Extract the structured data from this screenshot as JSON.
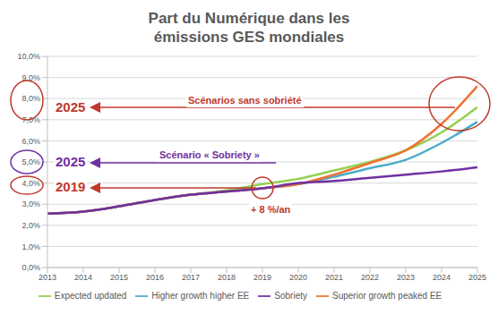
{
  "chart_data": {
    "type": "line",
    "title": "Part du Numérique dans les émissions GES mondiales",
    "x": [
      2013,
      2014,
      2015,
      2016,
      2017,
      2018,
      2019,
      2020,
      2021,
      2022,
      2023,
      2024,
      2025
    ],
    "xlim": [
      2013,
      2025
    ],
    "xticks": [
      2013,
      2014,
      2015,
      2016,
      2017,
      2018,
      2019,
      2020,
      2021,
      2022,
      2023,
      2024,
      2025
    ],
    "ylim": [
      0,
      10
    ],
    "yticks": [
      {
        "value": 0,
        "label": "0,0%"
      },
      {
        "value": 1,
        "label": "1,0%"
      },
      {
        "value": 2,
        "label": "2,0%"
      },
      {
        "value": 3,
        "label": "3,0%"
      },
      {
        "value": 4,
        "label": "4,0%"
      },
      {
        "value": 5,
        "label": "5,0%"
      },
      {
        "value": 6,
        "label": "6,0%"
      },
      {
        "value": 7,
        "label": "7,0%"
      },
      {
        "value": 8,
        "label": "8,0%"
      },
      {
        "value": 9,
        "label": "9,0%"
      },
      {
        "value": 10,
        "label": "10,0%"
      }
    ],
    "grid": true,
    "legend": "bottom",
    "series": [
      {
        "name": "Expected updated",
        "color": "#92d050",
        "values": [
          2.55,
          2.65,
          2.9,
          3.2,
          3.45,
          3.65,
          3.95,
          4.2,
          4.6,
          5.0,
          5.55,
          6.4,
          7.6
        ]
      },
      {
        "name": "Higher growth higher EE",
        "color": "#4bacc6",
        "values": [
          2.55,
          2.65,
          2.9,
          3.2,
          3.45,
          3.6,
          3.75,
          3.95,
          4.3,
          4.7,
          5.1,
          5.9,
          6.9
        ]
      },
      {
        "name": "Superior growth peaked EE",
        "color": "#f07030",
        "values": [
          2.55,
          2.65,
          2.9,
          3.2,
          3.45,
          3.6,
          3.75,
          3.95,
          4.4,
          4.95,
          5.55,
          6.8,
          8.6
        ]
      },
      {
        "name": "Sobriety",
        "color": "#7030a0",
        "values": [
          2.55,
          2.65,
          2.9,
          3.2,
          3.45,
          3.6,
          3.75,
          4.0,
          4.1,
          4.25,
          4.4,
          4.55,
          4.75
        ]
      }
    ],
    "annotations": [
      {
        "text": "2025",
        "color": "#c0392b"
      },
      {
        "text": "Scénarios sans sobriété",
        "color": "#c0392b"
      },
      {
        "text": "2025",
        "color": "#7030a0"
      },
      {
        "text": "Scénario « Sobriety »",
        "color": "#7030a0"
      },
      {
        "text": "2019",
        "color": "#c0392b"
      },
      {
        "text": "+ 8 %/an",
        "color": "#c0392b"
      }
    ]
  }
}
